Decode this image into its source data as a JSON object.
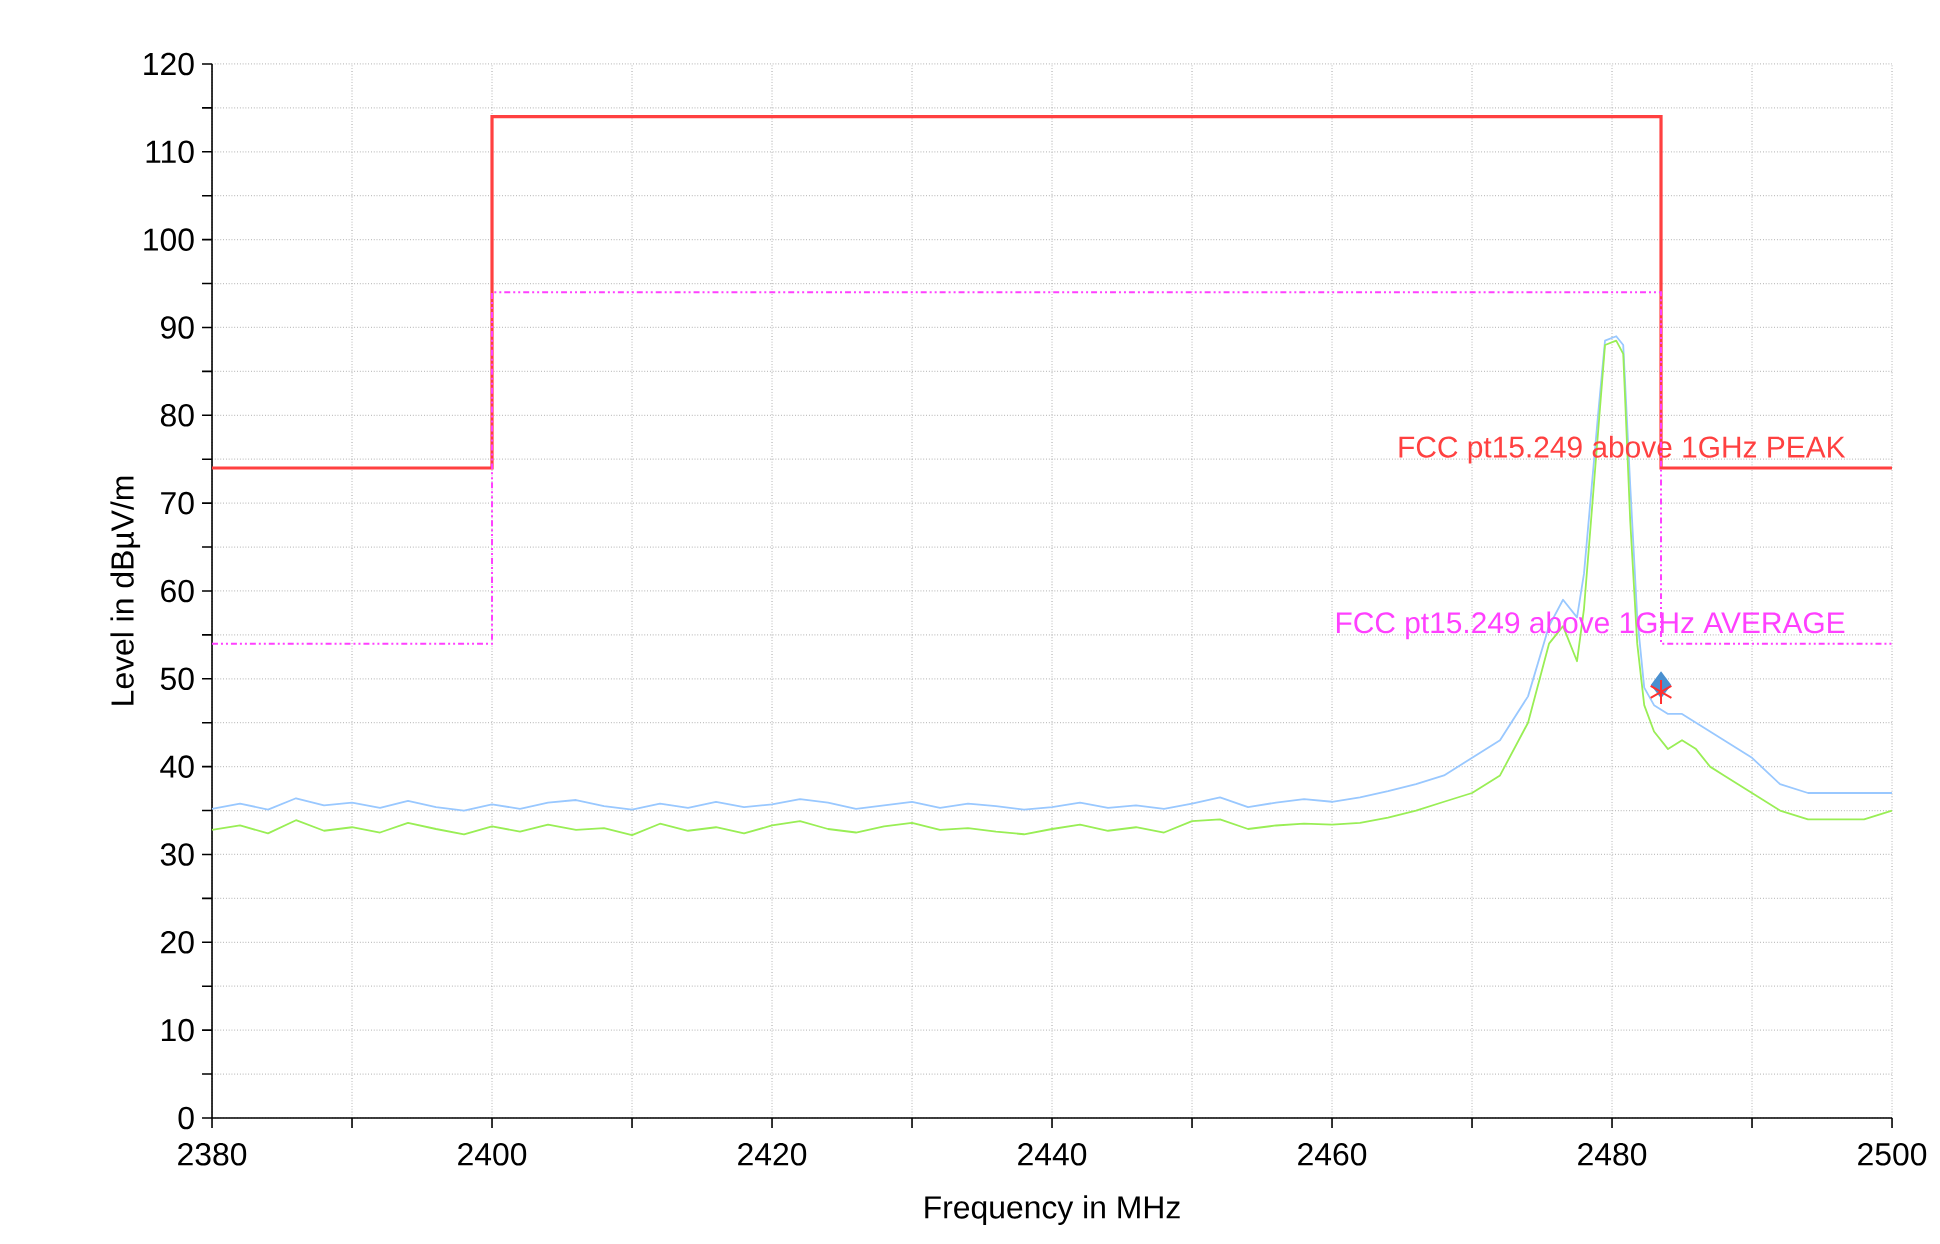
{
  "chart_data": {
    "type": "line",
    "xlabel": "Frequency in MHz",
    "ylabel": "Level in dBµV/m",
    "xlim": [
      2380,
      2500
    ],
    "ylim": [
      0,
      120
    ],
    "xticks": [
      2380,
      {
        "value": 2390,
        "label": null
      },
      2400,
      {
        "value": 2410,
        "label": null
      },
      2420,
      {
        "value": 2430,
        "label": null
      },
      2440,
      {
        "value": 2450,
        "label": null
      },
      2460,
      {
        "value": 2470,
        "label": null
      },
      2480,
      {
        "value": 2490,
        "label": null
      },
      2500
    ],
    "yticks": [
      0,
      {
        "value": 5,
        "label": null
      },
      10,
      {
        "value": 15,
        "label": null
      },
      20,
      {
        "value": 25,
        "label": null
      },
      30,
      {
        "value": 35,
        "label": null
      },
      40,
      {
        "value": 45,
        "label": null
      },
      50,
      {
        "value": 55,
        "label": null
      },
      60,
      {
        "value": 65,
        "label": null
      },
      70,
      {
        "value": 75,
        "label": null
      },
      80,
      {
        "value": 85,
        "label": null
      },
      90,
      {
        "value": 95,
        "label": null
      },
      100,
      {
        "value": 105,
        "label": null
      },
      110,
      {
        "value": 115,
        "label": null
      },
      120
    ],
    "grid": true,
    "series": [
      {
        "color": "#99c8ff",
        "x": [
          2380,
          2382,
          2384,
          2386,
          2388,
          2390,
          2392,
          2394,
          2396,
          2398,
          2400,
          2402,
          2404,
          2406,
          2408,
          2410,
          2412,
          2414,
          2416,
          2418,
          2420,
          2422,
          2424,
          2426,
          2428,
          2430,
          2432,
          2434,
          2436,
          2438,
          2440,
          2442,
          2444,
          2446,
          2448,
          2450,
          2452,
          2454,
          2456,
          2458,
          2460,
          2462,
          2464,
          2466,
          2468,
          2470,
          2472,
          2474,
          2475.5,
          2476.5,
          2477.5,
          2478,
          2479,
          2479.5,
          2480.3,
          2480.8,
          2481.3,
          2481.8,
          2482.3,
          2483,
          2484,
          2485,
          2486,
          2487,
          2488,
          2490,
          2492,
          2494,
          2496,
          2498,
          2500
        ],
        "values": [
          35.2,
          35.8,
          35.1,
          36.4,
          35.6,
          35.9,
          35.3,
          36.1,
          35.4,
          35.0,
          35.7,
          35.2,
          35.9,
          36.2,
          35.5,
          35.1,
          35.8,
          35.3,
          36.0,
          35.4,
          35.7,
          36.3,
          35.9,
          35.2,
          35.6,
          36.0,
          35.3,
          35.8,
          35.5,
          35.1,
          35.4,
          35.9,
          35.3,
          35.6,
          35.2,
          35.8,
          36.5,
          35.4,
          35.9,
          36.3,
          36.0,
          36.5,
          37.2,
          38,
          39,
          41,
          43,
          48,
          56,
          59,
          57,
          62,
          80,
          88.5,
          89,
          88,
          72,
          57,
          49,
          47,
          46,
          46,
          45,
          44,
          43,
          41,
          38,
          37,
          37,
          37,
          37
        ]
      },
      {
        "color": "#99ee55",
        "x": [
          2380,
          2382,
          2384,
          2386,
          2388,
          2390,
          2392,
          2394,
          2396,
          2398,
          2400,
          2402,
          2404,
          2406,
          2408,
          2410,
          2412,
          2414,
          2416,
          2418,
          2420,
          2422,
          2424,
          2426,
          2428,
          2430,
          2432,
          2434,
          2436,
          2438,
          2440,
          2442,
          2444,
          2446,
          2448,
          2450,
          2452,
          2454,
          2456,
          2458,
          2460,
          2462,
          2464,
          2466,
          2468,
          2470,
          2472,
          2474,
          2475.5,
          2476.5,
          2477.5,
          2478,
          2479,
          2479.5,
          2480.3,
          2480.8,
          2481.3,
          2481.8,
          2482.3,
          2483,
          2484,
          2485,
          2486,
          2487,
          2488,
          2490,
          2492,
          2494,
          2496,
          2498,
          2500
        ],
        "values": [
          32.8,
          33.3,
          32.4,
          33.9,
          32.7,
          33.1,
          32.5,
          33.6,
          32.9,
          32.3,
          33.2,
          32.6,
          33.4,
          32.8,
          33.0,
          32.2,
          33.5,
          32.7,
          33.1,
          32.4,
          33.3,
          33.8,
          32.9,
          32.5,
          33.2,
          33.6,
          32.8,
          33.0,
          32.6,
          32.3,
          32.9,
          33.4,
          32.7,
          33.1,
          32.5,
          33.8,
          34.0,
          32.9,
          33.3,
          33.5,
          33.4,
          33.6,
          34.2,
          35,
          36,
          37,
          39,
          45,
          54,
          56,
          52,
          58,
          78,
          88,
          88.5,
          87,
          68,
          54,
          47,
          44,
          42,
          43,
          42,
          40,
          39,
          37,
          35,
          34,
          34,
          34,
          35
        ]
      },
      {
        "type": "step",
        "name": "FCC pt15.249 above 1GHz PEAK",
        "color": "#ff4040",
        "line_style": "solid",
        "x": [
          2380,
          2400,
          2483.5,
          2500
        ],
        "values": [
          74,
          114,
          74,
          74
        ]
      },
      {
        "type": "step",
        "name": "FCC pt15.249 above 1GHz AVERAGE",
        "color": "#ff40ff",
        "line_style": "dotted",
        "x": [
          2380,
          2400,
          2483.5,
          2500
        ],
        "values": [
          54,
          94,
          54,
          54
        ]
      },
      {
        "type": "scatter",
        "color": "#4a90d0",
        "marker": "diamond",
        "x": [
          2483.5
        ],
        "values": [
          49.3
        ]
      },
      {
        "type": "scatter",
        "color": "#ff3030",
        "marker": "cross",
        "x": [
          2483.5
        ],
        "values": [
          48.5
        ]
      }
    ]
  }
}
